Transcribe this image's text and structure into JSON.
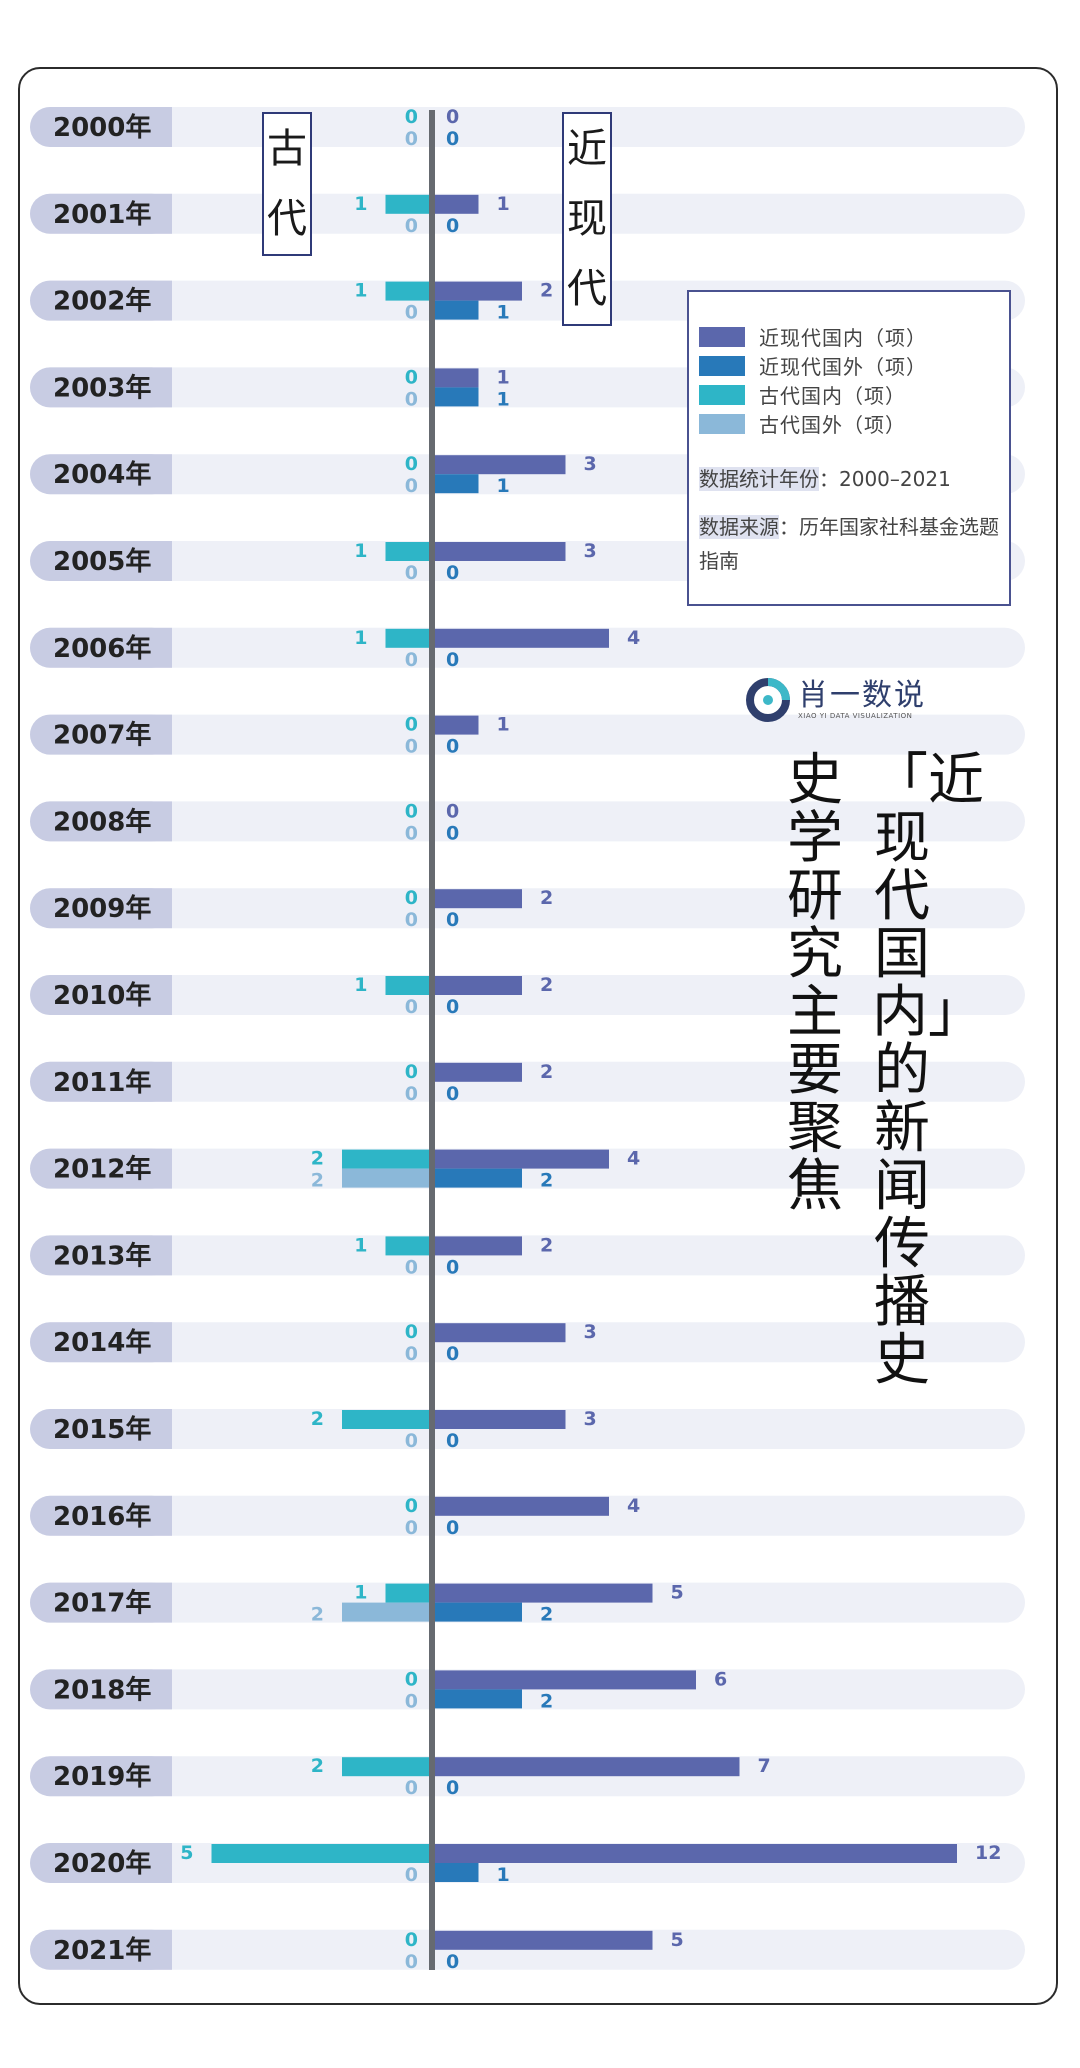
{
  "labels": {
    "ancient": "古代",
    "modern": "近现代"
  },
  "legend": {
    "items": [
      {
        "label": "近现代国内（项）",
        "color": "#5b67ac"
      },
      {
        "label": "近现代国外（项）",
        "color": "#2879b9"
      },
      {
        "label": "古代国内（项）",
        "color": "#2eb5c7"
      },
      {
        "label": "古代国外（项）",
        "color": "#8bb8d9"
      }
    ],
    "years_key": "数据统计年份",
    "years_value": "：2000–2021",
    "source_key": "数据来源",
    "source_value": "：历年国家社科基金选题指南"
  },
  "logo": {
    "cn": "肖一数说",
    "en": "XIAO YI DATA VISUALIZATION"
  },
  "title": {
    "main": "「近现代国内」的新闻传播史",
    "sub": "史学研究主要聚焦"
  },
  "chart_data": {
    "type": "bar",
    "orientation": "horizontal-diverging",
    "categories": [
      "2000年",
      "2001年",
      "2002年",
      "2003年",
      "2004年",
      "2005年",
      "2006年",
      "2007年",
      "2008年",
      "2009年",
      "2010年",
      "2011年",
      "2012年",
      "2013年",
      "2014年",
      "2015年",
      "2016年",
      "2017年",
      "2018年",
      "2019年",
      "2020年",
      "2021年"
    ],
    "series": [
      {
        "name": "近现代国内（项）",
        "side": "right",
        "color": "#5b67ac",
        "values": [
          0,
          1,
          2,
          1,
          3,
          3,
          4,
          1,
          0,
          2,
          2,
          2,
          4,
          2,
          3,
          3,
          4,
          5,
          6,
          7,
          12,
          5
        ]
      },
      {
        "name": "近现代国外（项）",
        "side": "right",
        "color": "#2879b9",
        "values": [
          0,
          0,
          1,
          1,
          1,
          0,
          0,
          0,
          0,
          0,
          0,
          0,
          2,
          0,
          0,
          0,
          0,
          2,
          2,
          0,
          1,
          0
        ]
      },
      {
        "name": "古代国内（项）",
        "side": "left",
        "color": "#2eb5c7",
        "values": [
          0,
          1,
          1,
          0,
          0,
          1,
          1,
          0,
          0,
          0,
          1,
          0,
          2,
          1,
          0,
          2,
          0,
          1,
          0,
          2,
          5,
          0
        ]
      },
      {
        "name": "古代国外（项）",
        "side": "left",
        "color": "#8bb8d9",
        "values": [
          0,
          0,
          0,
          0,
          0,
          0,
          0,
          0,
          0,
          0,
          0,
          0,
          2,
          0,
          0,
          0,
          0,
          2,
          0,
          0,
          0,
          0
        ]
      }
    ]
  }
}
